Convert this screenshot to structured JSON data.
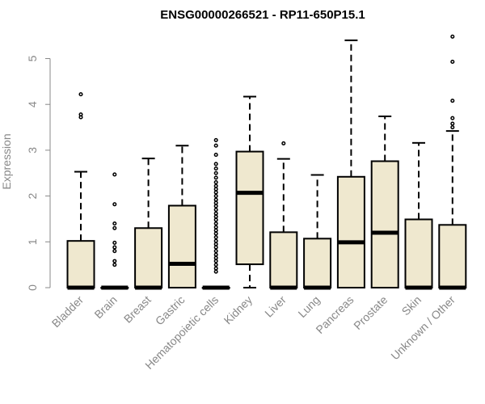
{
  "chart_data": {
    "type": "boxplot",
    "title": "ENSG00000266521 - RP11-650P15.1",
    "xlabel": "",
    "ylabel": "Expression",
    "ylim": [
      0,
      5.5
    ],
    "yticks": [
      0,
      1,
      2,
      3,
      4,
      5
    ],
    "box_fill": "#efe8cf",
    "axis_color": "#888888",
    "categories": [
      "Bladder",
      "Brain",
      "Breast",
      "Gastric",
      "Hematopoietic cells",
      "Kidney",
      "Liver",
      "Lung",
      "Pancreas",
      "Prostate",
      "Skin",
      "Unknown / Other"
    ],
    "boxes": [
      {
        "q1": 0,
        "median": 0,
        "q3": 1.02,
        "whisker_low": 0,
        "whisker_high": 2.53,
        "outliers": [
          3.72,
          3.78,
          4.22
        ]
      },
      {
        "q1": 0,
        "median": 0,
        "q3": 0,
        "whisker_low": 0,
        "whisker_high": 0,
        "outliers": [
          0.5,
          0.58,
          0.8,
          0.88,
          0.98,
          1.3,
          1.4,
          1.82,
          2.47
        ]
      },
      {
        "q1": 0,
        "median": 0,
        "q3": 1.3,
        "whisker_low": 0,
        "whisker_high": 2.82,
        "outliers": []
      },
      {
        "q1": 0,
        "median": 0.52,
        "q3": 1.79,
        "whisker_low": 0,
        "whisker_high": 3.1,
        "outliers": []
      },
      {
        "q1": 0,
        "median": 0,
        "q3": 0,
        "whisker_low": 0,
        "whisker_high": 0,
        "outliers": [
          0.35,
          0.42,
          0.5,
          0.58,
          0.65,
          0.72,
          0.8,
          0.88,
          0.95,
          1.02,
          1.1,
          1.18,
          1.25,
          1.32,
          1.4,
          1.48,
          1.55,
          1.62,
          1.7,
          1.78,
          1.85,
          1.92,
          2.0,
          2.08,
          2.15,
          2.22,
          2.3,
          2.4,
          2.5,
          2.6,
          2.7,
          2.9,
          3.1,
          3.22
        ]
      },
      {
        "q1": 0.51,
        "median": 2.07,
        "q3": 2.97,
        "whisker_low": 0,
        "whisker_high": 4.17,
        "outliers": []
      },
      {
        "q1": 0,
        "median": 0,
        "q3": 1.21,
        "whisker_low": 0,
        "whisker_high": 2.81,
        "outliers": [
          3.15
        ]
      },
      {
        "q1": 0,
        "median": 0,
        "q3": 1.07,
        "whisker_low": 0,
        "whisker_high": 2.46,
        "outliers": []
      },
      {
        "q1": 0,
        "median": 0.99,
        "q3": 2.42,
        "whisker_low": 0,
        "whisker_high": 5.4,
        "outliers": []
      },
      {
        "q1": 0,
        "median": 1.2,
        "q3": 2.76,
        "whisker_low": 0,
        "whisker_high": 3.74,
        "outliers": []
      },
      {
        "q1": 0,
        "median": 0,
        "q3": 1.49,
        "whisker_low": 0,
        "whisker_high": 3.16,
        "outliers": []
      },
      {
        "q1": 0,
        "median": 0,
        "q3": 1.37,
        "whisker_low": 0,
        "whisker_high": 3.42,
        "outliers": [
          3.5,
          3.58,
          3.7,
          4.08,
          4.93,
          5.48
        ]
      }
    ]
  }
}
